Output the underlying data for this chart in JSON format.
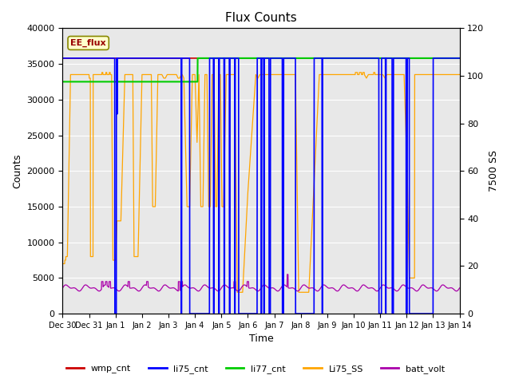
{
  "title": "Flux Counts",
  "xlabel": "Time",
  "ylabel_left": "Counts",
  "ylabel_right": "7500 SS",
  "ylim_left": [
    0,
    40000
  ],
  "ylim_right": [
    0,
    120
  ],
  "annotation_text": "EE_flux",
  "bg_color": "#e8e8e8",
  "colors": {
    "wmp_cnt": "#cc0000",
    "li75_cnt": "#0000ff",
    "li77_cnt": "#00cc00",
    "Li75_SS": "#ffa500",
    "batt_volt": "#aa00aa"
  },
  "tick_labels": [
    "Dec 30",
    "Dec 31",
    "Jan 1",
    "Jan 2",
    "Jan 3",
    "Jan 4",
    "Jan 5",
    "Jan 6",
    "Jan 7",
    "Jan 8",
    "Jan 9",
    "Jan 10",
    "Jan 11",
    "Jan 12",
    "Jan 13",
    "Jan 14"
  ],
  "tick_positions": [
    0,
    1,
    2,
    3,
    4,
    5,
    6,
    7,
    8,
    9,
    10,
    11,
    12,
    13,
    14,
    15
  ],
  "yticks_left": [
    0,
    5000,
    10000,
    15000,
    20000,
    25000,
    30000,
    35000,
    40000
  ],
  "yticks_right": [
    0,
    20,
    40,
    60,
    80,
    100,
    120
  ]
}
